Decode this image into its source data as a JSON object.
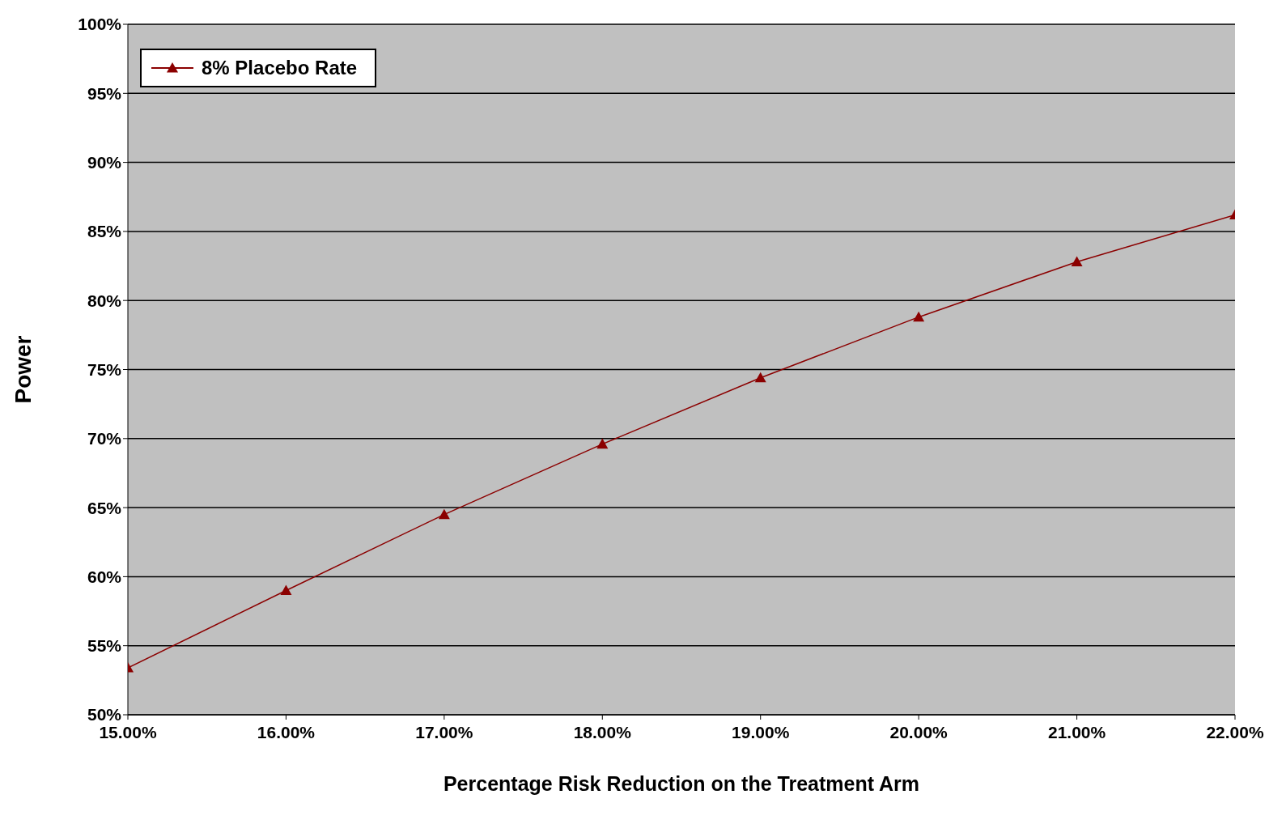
{
  "chart_data": {
    "type": "line",
    "xlabel": "Percentage Risk Reduction on the Treatment Arm",
    "ylabel": "Power",
    "x": [
      15,
      16,
      17,
      18,
      19,
      20,
      21,
      22
    ],
    "series": [
      {
        "name": "8% Placebo Rate",
        "color": "#8b0000",
        "values": [
          53.4,
          59.0,
          64.5,
          69.6,
          74.4,
          78.8,
          82.8,
          86.2
        ]
      }
    ],
    "xlim": [
      15,
      22
    ],
    "xticks": [
      {
        "value": 15,
        "label": "15.00%"
      },
      {
        "value": 16,
        "label": "16.00%"
      },
      {
        "value": 17,
        "label": "17.00%"
      },
      {
        "value": 18,
        "label": "18.00%"
      },
      {
        "value": 19,
        "label": "19.00%"
      },
      {
        "value": 20,
        "label": "20.00%"
      },
      {
        "value": 21,
        "label": "21.00%"
      },
      {
        "value": 22,
        "label": "22.00%"
      }
    ],
    "ylim": [
      50,
      100
    ],
    "yticks": [
      {
        "value": 50,
        "label": "50%"
      },
      {
        "value": 55,
        "label": "55%"
      },
      {
        "value": 60,
        "label": "60%"
      },
      {
        "value": 65,
        "label": "65%"
      },
      {
        "value": 70,
        "label": "70%"
      },
      {
        "value": 75,
        "label": "75%"
      },
      {
        "value": 80,
        "label": "80%"
      },
      {
        "value": 85,
        "label": "85%"
      },
      {
        "value": 90,
        "label": "90%"
      },
      {
        "value": 95,
        "label": "95%"
      },
      {
        "value": 100,
        "label": "100%"
      }
    ],
    "grid": "y",
    "legend": "top left",
    "marker": "triangle",
    "line_style": "solid"
  }
}
